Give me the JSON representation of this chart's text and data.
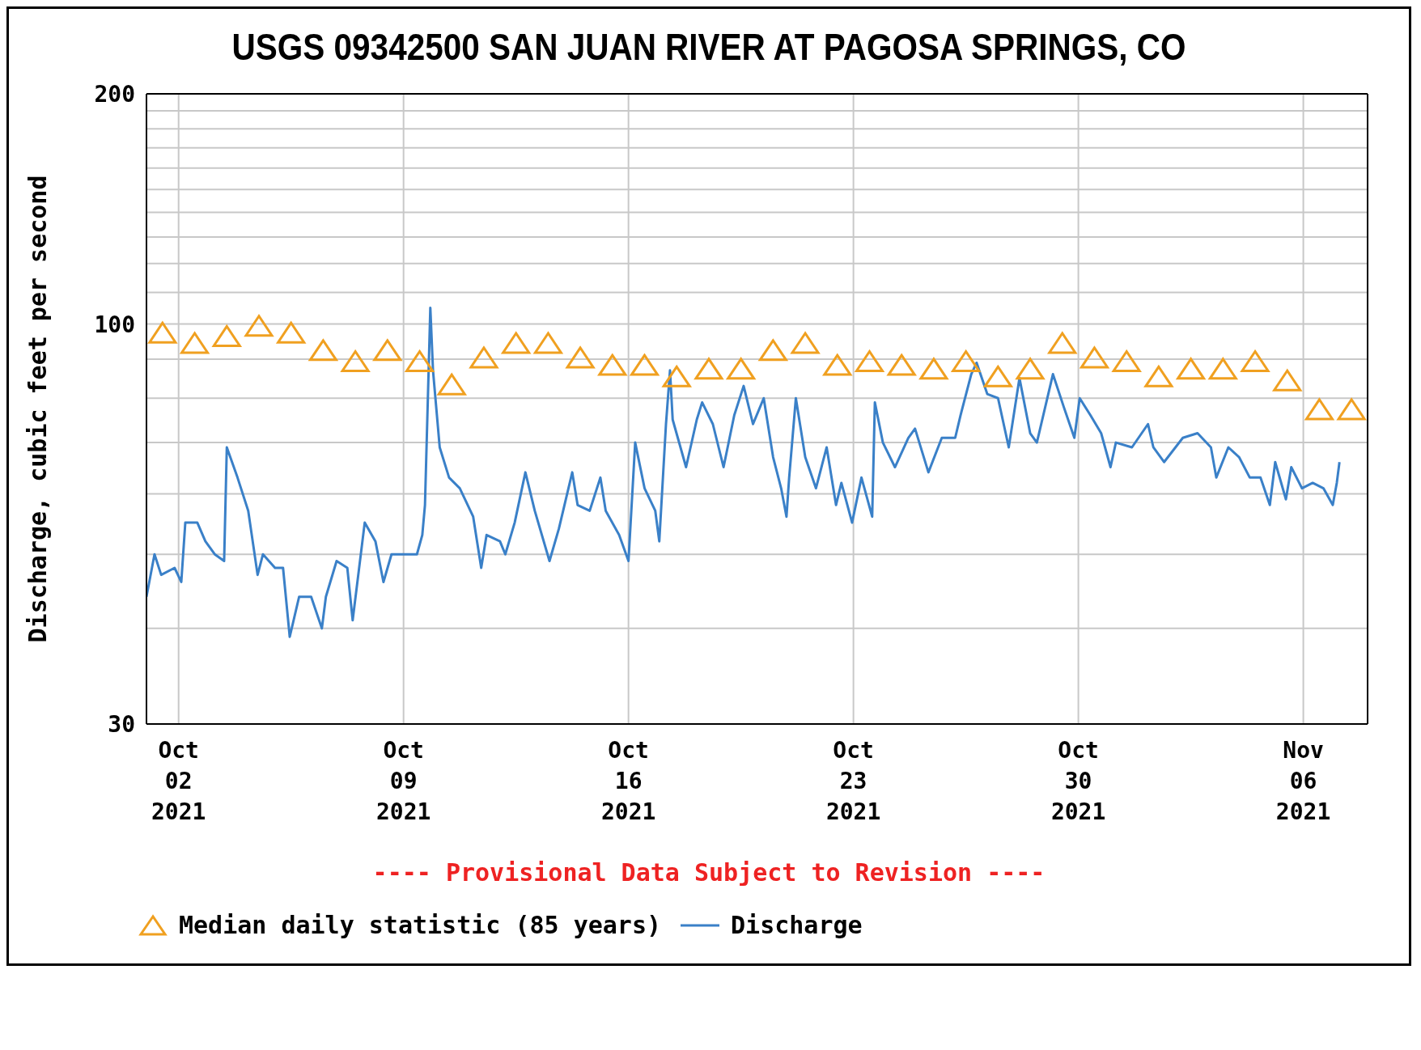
{
  "chart_data": {
    "type": "line",
    "title": "USGS 09342500 SAN JUAN RIVER AT PAGOSA SPRINGS, CO",
    "ylabel": "Discharge, cubic feet per second",
    "annotations": [
      "---- Provisional Data Subject to Revision ----"
    ],
    "xlim": [
      "2021-10-01",
      "2021-11-08"
    ],
    "xticks": [
      {
        "value": "2021-10-02",
        "label": "Oct\n02\n2021"
      },
      {
        "value": "2021-10-09",
        "label": "Oct\n09\n2021"
      },
      {
        "value": "2021-10-16",
        "label": "Oct\n16\n2021"
      },
      {
        "value": "2021-10-23",
        "label": "Oct\n23\n2021"
      },
      {
        "value": "2021-10-30",
        "label": "Oct\n30\n2021"
      },
      {
        "value": "2021-11-06",
        "label": "Nov\n06\n2021"
      }
    ],
    "ylim": [
      30,
      200
    ],
    "yticks": [
      30,
      {
        "value": 40,
        "label": null
      },
      {
        "value": 50,
        "label": null
      },
      {
        "value": 60,
        "label": null
      },
      {
        "value": 70,
        "label": null
      },
      {
        "value": 80,
        "label": null
      },
      {
        "value": 90,
        "label": null
      },
      100,
      {
        "value": 110,
        "label": null
      },
      {
        "value": 120,
        "label": null
      },
      {
        "value": 130,
        "label": null
      },
      {
        "value": 140,
        "label": null
      },
      {
        "value": 150,
        "label": null
      },
      {
        "value": 160,
        "label": null
      },
      {
        "value": 170,
        "label": null
      },
      {
        "value": 180,
        "label": null
      },
      {
        "value": 190,
        "label": null
      },
      200
    ],
    "log": "y",
    "grid": true,
    "legend": "bottom",
    "series": [
      {
        "name": "Median daily statistic (85 years)",
        "type": "scatter",
        "marker": "triangle",
        "color": "#f0a020",
        "x": [
          "2021-10-01T12:00",
          "2021-10-02T12:00",
          "2021-10-03T12:00",
          "2021-10-04T12:00",
          "2021-10-05T12:00",
          "2021-10-06T12:00",
          "2021-10-07T12:00",
          "2021-10-08T12:00",
          "2021-10-09T12:00",
          "2021-10-10T12:00",
          "2021-10-11T12:00",
          "2021-10-12T12:00",
          "2021-10-13T12:00",
          "2021-10-14T12:00",
          "2021-10-15T12:00",
          "2021-10-16T12:00",
          "2021-10-17T12:00",
          "2021-10-18T12:00",
          "2021-10-19T12:00",
          "2021-10-20T12:00",
          "2021-10-21T12:00",
          "2021-10-22T12:00",
          "2021-10-23T12:00",
          "2021-10-24T12:00",
          "2021-10-25T12:00",
          "2021-10-26T12:00",
          "2021-10-27T12:00",
          "2021-10-28T12:00",
          "2021-10-29T12:00",
          "2021-10-30T12:00",
          "2021-10-31T12:00",
          "2021-11-01T12:00",
          "2021-11-02T12:00",
          "2021-11-03T12:00",
          "2021-11-04T12:00",
          "2021-11-05T12:00",
          "2021-11-06T12:00",
          "2021-11-07T12:00"
        ],
        "values": [
          97,
          94,
          96,
          99,
          97,
          92,
          89,
          92,
          89,
          83,
          90,
          94,
          94,
          90,
          88,
          88,
          85,
          87,
          87,
          92,
          94,
          88,
          89,
          88,
          87,
          89,
          85,
          87,
          94,
          90,
          89,
          85,
          87,
          87,
          89,
          84,
          77,
          77
        ]
      },
      {
        "name": "Discharge",
        "color": "#3a80c8",
        "marker": "none",
        "x": [
          "2021-10-01T00:00",
          "2021-10-01T06:00",
          "2021-10-01T11:00",
          "2021-10-01T21:00",
          "2021-10-02T02:00",
          "2021-10-02T05:00",
          "2021-10-02T14:00",
          "2021-10-02T20:00",
          "2021-10-03T03:00",
          "2021-10-03T10:00",
          "2021-10-03T12:00",
          "2021-10-03T20:00",
          "2021-10-04T04:00",
          "2021-10-04T11:00",
          "2021-10-04T15:00",
          "2021-10-05T00:00",
          "2021-10-05T06:00",
          "2021-10-05T11:00",
          "2021-10-05T18:00",
          "2021-10-06T03:00",
          "2021-10-06T11:00",
          "2021-10-06T14:00",
          "2021-10-06T22:00",
          "2021-10-07T06:00",
          "2021-10-07T10:00",
          "2021-10-07T19:00",
          "2021-10-08T03:00",
          "2021-10-08T09:00",
          "2021-10-08T15:00",
          "2021-10-09T10:00",
          "2021-10-09T14:00",
          "2021-10-09T16:00",
          "2021-10-09T20:00",
          "2021-10-09T22:00",
          "2021-10-10T03:00",
          "2021-10-10T10:00",
          "2021-10-10T18:00",
          "2021-10-11T04:00",
          "2021-10-11T10:00",
          "2021-10-11T14:00",
          "2021-10-12T00:00",
          "2021-10-12T04:00",
          "2021-10-12T11:00",
          "2021-10-12T19:00",
          "2021-10-13T02:00",
          "2021-10-13T13:00",
          "2021-10-13T20:00",
          "2021-10-14T06:00",
          "2021-10-14T10:00",
          "2021-10-14T19:00",
          "2021-10-15T03:00",
          "2021-10-15T07:00",
          "2021-10-15T17:00",
          "2021-10-16T00:00",
          "2021-10-16T05:00",
          "2021-10-16T12:00",
          "2021-10-16T20:00",
          "2021-10-16T23:00",
          "2021-10-17T04:00",
          "2021-10-17T07:00",
          "2021-10-17T09:00",
          "2021-10-17T19:00",
          "2021-10-18T03:00",
          "2021-10-18T07:00",
          "2021-10-18T15:00",
          "2021-10-18T23:00",
          "2021-10-19T07:00",
          "2021-10-19T14:00",
          "2021-10-19T21:00",
          "2021-10-20T05:00",
          "2021-10-20T12:00",
          "2021-10-20T18:00",
          "2021-10-20T22:00",
          "2021-10-21T00:00",
          "2021-10-21T05:00",
          "2021-10-21T12:00",
          "2021-10-21T20:00",
          "2021-10-22T04:00",
          "2021-10-22T11:00",
          "2021-10-22T15:00",
          "2021-10-22T23:00",
          "2021-10-23T06:00",
          "2021-10-23T14:00",
          "2021-10-23T16:00",
          "2021-10-23T22:00",
          "2021-10-24T07:00",
          "2021-10-24T17:00",
          "2021-10-24T22:00",
          "2021-10-25T08:00",
          "2021-10-25T18:00",
          "2021-10-26T04:00",
          "2021-10-26T08:00",
          "2021-10-26T16:00",
          "2021-10-26T20:00",
          "2021-10-27T04:00",
          "2021-10-27T12:00",
          "2021-10-27T20:00",
          "2021-10-28T04:00",
          "2021-10-28T12:00",
          "2021-10-28T17:00",
          "2021-10-29T05:00",
          "2021-10-29T13:00",
          "2021-10-29T21:00",
          "2021-10-30T01:00",
          "2021-10-30T09:00",
          "2021-10-30T17:00",
          "2021-10-31T00:00",
          "2021-10-31T04:00",
          "2021-10-31T16:00",
          "2021-11-01T04:00",
          "2021-11-01T08:00",
          "2021-11-01T16:00",
          "2021-11-02T06:00",
          "2021-11-02T17:00",
          "2021-11-03T03:00",
          "2021-11-03T07:00",
          "2021-11-03T16:00",
          "2021-11-04T00:00",
          "2021-11-04T08:00",
          "2021-11-04T16:00",
          "2021-11-04T23:00",
          "2021-11-05T03:00",
          "2021-11-05T11:00",
          "2021-11-05T15:00",
          "2021-11-05T23:00",
          "2021-11-06T07:00",
          "2021-11-06T15:00",
          "2021-11-06T22:00",
          "2021-11-07T01:00",
          "2021-11-07T03:00"
        ],
        "values": [
          44,
          50,
          47,
          48,
          46,
          55,
          55,
          52,
          50,
          49,
          69,
          63,
          57,
          47,
          50,
          48,
          48,
          39,
          44,
          44,
          40,
          44,
          49,
          48,
          41,
          55,
          52,
          46,
          50,
          50,
          53,
          58,
          105,
          87,
          69,
          63,
          61,
          56,
          48,
          53,
          52,
          50,
          55,
          64,
          57,
          49,
          54,
          64,
          58,
          57,
          63,
          57,
          53,
          49,
          70,
          61,
          57,
          52,
          74,
          87,
          75,
          65,
          75,
          79,
          74,
          65,
          76,
          83,
          74,
          80,
          67,
          61,
          56,
          63,
          80,
          67,
          61,
          69,
          58,
          62,
          55,
          63,
          56,
          79,
          70,
          65,
          71,
          73,
          64,
          71,
          71,
          76,
          86,
          89,
          81,
          80,
          69,
          85,
          72,
          70,
          86,
          78,
          71,
          80,
          76,
          72,
          65,
          70,
          69,
          74,
          69,
          66,
          71,
          72,
          69,
          63,
          69,
          67,
          63,
          63,
          58,
          66,
          59,
          65,
          61,
          62,
          61,
          58,
          62,
          66
        ]
      }
    ]
  }
}
